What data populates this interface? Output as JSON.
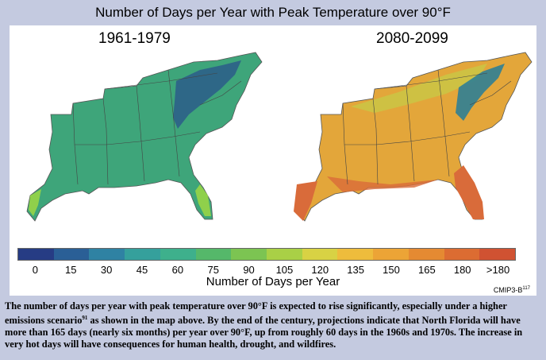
{
  "title": "Number of Days per Year with Peak Temperature over 90°F",
  "maps": {
    "left": {
      "period": "1961-1979",
      "fill_color": "#3ea57a",
      "highland_color": "#2b5c8a",
      "coast_color": "#8fd04b"
    },
    "right": {
      "period": "2080-2099",
      "fill_color": "#e3a63a",
      "highland_color": "#2f7f95",
      "coast_color": "#d96b3a"
    }
  },
  "legend": {
    "label": "Number of Days per Year",
    "ticks": [
      "0",
      "15",
      "30",
      "45",
      "60",
      "75",
      "90",
      "105",
      "120",
      "135",
      "150",
      "165",
      "180",
      ">180"
    ],
    "colors": [
      "#263c84",
      "#2a5f96",
      "#2f82a3",
      "#35a09c",
      "#3eb08c",
      "#55b86a",
      "#7cc452",
      "#a9d046",
      "#d8d244",
      "#eebc3c",
      "#eca436",
      "#e58a32",
      "#dc6c32",
      "#d05232"
    ]
  },
  "source": {
    "text": "CMIP3-B",
    "superscript": "117"
  },
  "caption": {
    "part1": "The number of days per year with peak temperature over 90°F is expected to rise significantly, especially under a higher emissions scenario",
    "superscript": "91",
    "part2": " as shown in the map above. By the end of the century, projections indicate that North Florida will have more than 165 days (nearly six months) per year over 90°F, up from roughly 60 days in the 1960s and 1970s. The increase in very hot days will have consequences for human health, drought, and wildfires."
  }
}
